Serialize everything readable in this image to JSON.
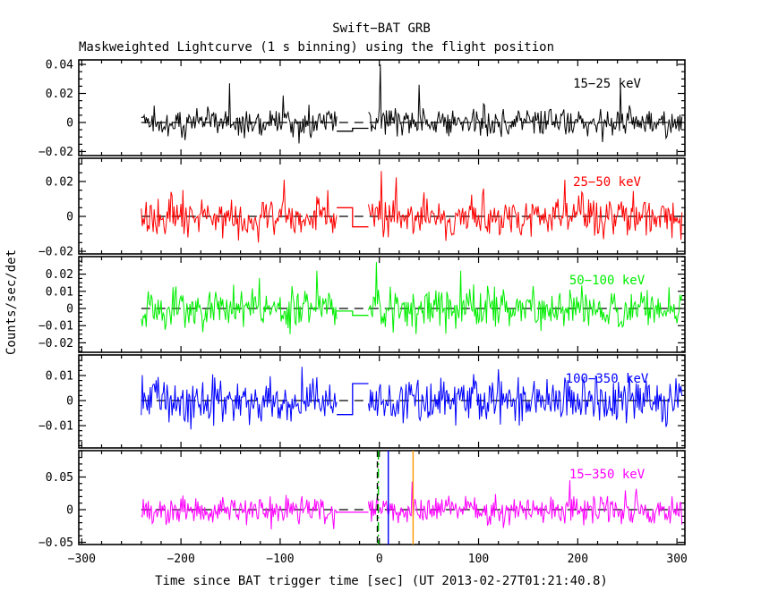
{
  "figure": {
    "background": "#ffffff",
    "axes_color": "#000000"
  },
  "chart_data": {
    "type": "line",
    "title": "Swift−BAT GRB",
    "subtitle": "Maskweighted Lightcurve (1 s binning) using the flight position",
    "xlabel": "Time since BAT trigger time [sec] (UT 2013-02-27T01:21:40.8)",
    "ylabel": "Counts/sec/det",
    "xlim": [
      -303,
      308
    ],
    "x_major_ticks": [
      -300,
      -200,
      -100,
      0,
      100,
      200,
      300
    ],
    "x_tick_labels": [
      "−300",
      "−200",
      "−100",
      "0",
      "100",
      "200",
      "300"
    ],
    "x_minor_step": 20,
    "bin_seconds": 1,
    "data_start": -240,
    "data_end": 305,
    "gap_start": -43,
    "gap_mid": -27,
    "gap_end": -11,
    "zero_line": {
      "style": "dashed",
      "color": "#000000"
    },
    "legend_position": "inside-top-right-per-panel",
    "grid": false,
    "panels": [
      {
        "label": "15−25 keV",
        "color": "#000000",
        "ylim": [
          -0.0228,
          0.0431
        ],
        "y_major_ticks": [
          -0.02,
          0,
          0.02,
          0.04
        ],
        "y_tick_labels": [
          "−0.02",
          "0",
          "0.02",
          "0.04"
        ],
        "y_minor_step": 0.005,
        "noise_mean": 0,
        "noise_sigma": 0.005,
        "gap_levels": [
          -0.006,
          -0.004
        ],
        "spikes": [
          {
            "t": -151,
            "y": 0.027
          },
          {
            "t": 1,
            "y": 0.04
          },
          {
            "t": 40,
            "y": 0.026
          },
          {
            "t": 243,
            "y": 0.028
          }
        ],
        "seed": 11
      },
      {
        "label": "25−50 keV",
        "color": "#ff0000",
        "ylim": [
          -0.0215,
          0.0333
        ],
        "y_major_ticks": [
          -0.02,
          0,
          0.02
        ],
        "y_tick_labels": [
          "−0.02",
          "0",
          "0.02"
        ],
        "y_minor_step": 0.005,
        "noise_mean": 0,
        "noise_sigma": 0.0055,
        "gap_levels": [
          0.005,
          -0.006
        ],
        "spikes": [
          {
            "t": 2,
            "y": 0.026
          },
          {
            "t": -96,
            "y": 0.021
          },
          {
            "t": 187,
            "y": 0.021
          }
        ],
        "seed": 22
      },
      {
        "label": "50−100 keV",
        "color": "#00ee00",
        "ylim": [
          -0.0255,
          0.0302
        ],
        "y_major_ticks": [
          -0.02,
          -0.01,
          0,
          0.01,
          0.02
        ],
        "y_tick_labels": [
          "−0.02",
          "−0.01",
          "0",
          "0.01",
          "0.02"
        ],
        "y_minor_step": 0.0025,
        "noise_mean": 0,
        "noise_sigma": 0.006,
        "gap_levels": [
          -0.0015,
          -0.004
        ],
        "spikes": [
          {
            "t": -3,
            "y": 0.027
          },
          {
            "t": -63,
            "y": 0.022
          },
          {
            "t": 82,
            "y": 0.022
          }
        ],
        "seed": 33
      },
      {
        "label": "100−350 keV",
        "color": "#0000ff",
        "ylim": [
          -0.0189,
          0.0182
        ],
        "y_major_ticks": [
          -0.01,
          0,
          0.01
        ],
        "y_tick_labels": [
          "−0.01",
          "0",
          "0.01"
        ],
        "y_minor_step": 0.002,
        "noise_mean": 0,
        "noise_sigma": 0.0045,
        "gap_levels": [
          -0.0056,
          0.0068
        ],
        "spikes": [
          {
            "t": -78,
            "y": 0.0135
          },
          {
            "t": 120,
            "y": 0.0125
          }
        ],
        "seed": 44
      },
      {
        "label": "15−350 keV",
        "color": "#ff00ff",
        "ylim": [
          -0.0534,
          0.0904
        ],
        "y_major_ticks": [
          -0.05,
          0,
          0.05
        ],
        "y_tick_labels": [
          "−0.05",
          "0",
          "0.05"
        ],
        "y_minor_step": 0.01,
        "noise_mean": 0,
        "noise_sigma": 0.0105,
        "gap_levels": [
          -0.004,
          -0.004
        ],
        "spikes": [
          {
            "t": 33,
            "y": 0.043
          },
          {
            "t": 192,
            "y": 0.045
          }
        ],
        "seed": 55
      }
    ],
    "event_lines": [
      {
        "name": "vline-black-dashed",
        "t": -2,
        "color": "#000000",
        "style": "dashed"
      },
      {
        "name": "vline-green-dashdot",
        "t": -1,
        "color": "#00bb00",
        "style": "dashdot"
      },
      {
        "name": "vline-blue-solid",
        "t": 9,
        "color": "#0000ff",
        "style": "solid"
      },
      {
        "name": "vline-orange-solid",
        "t": 34,
        "color": "#ff9900",
        "style": "solid"
      }
    ]
  }
}
